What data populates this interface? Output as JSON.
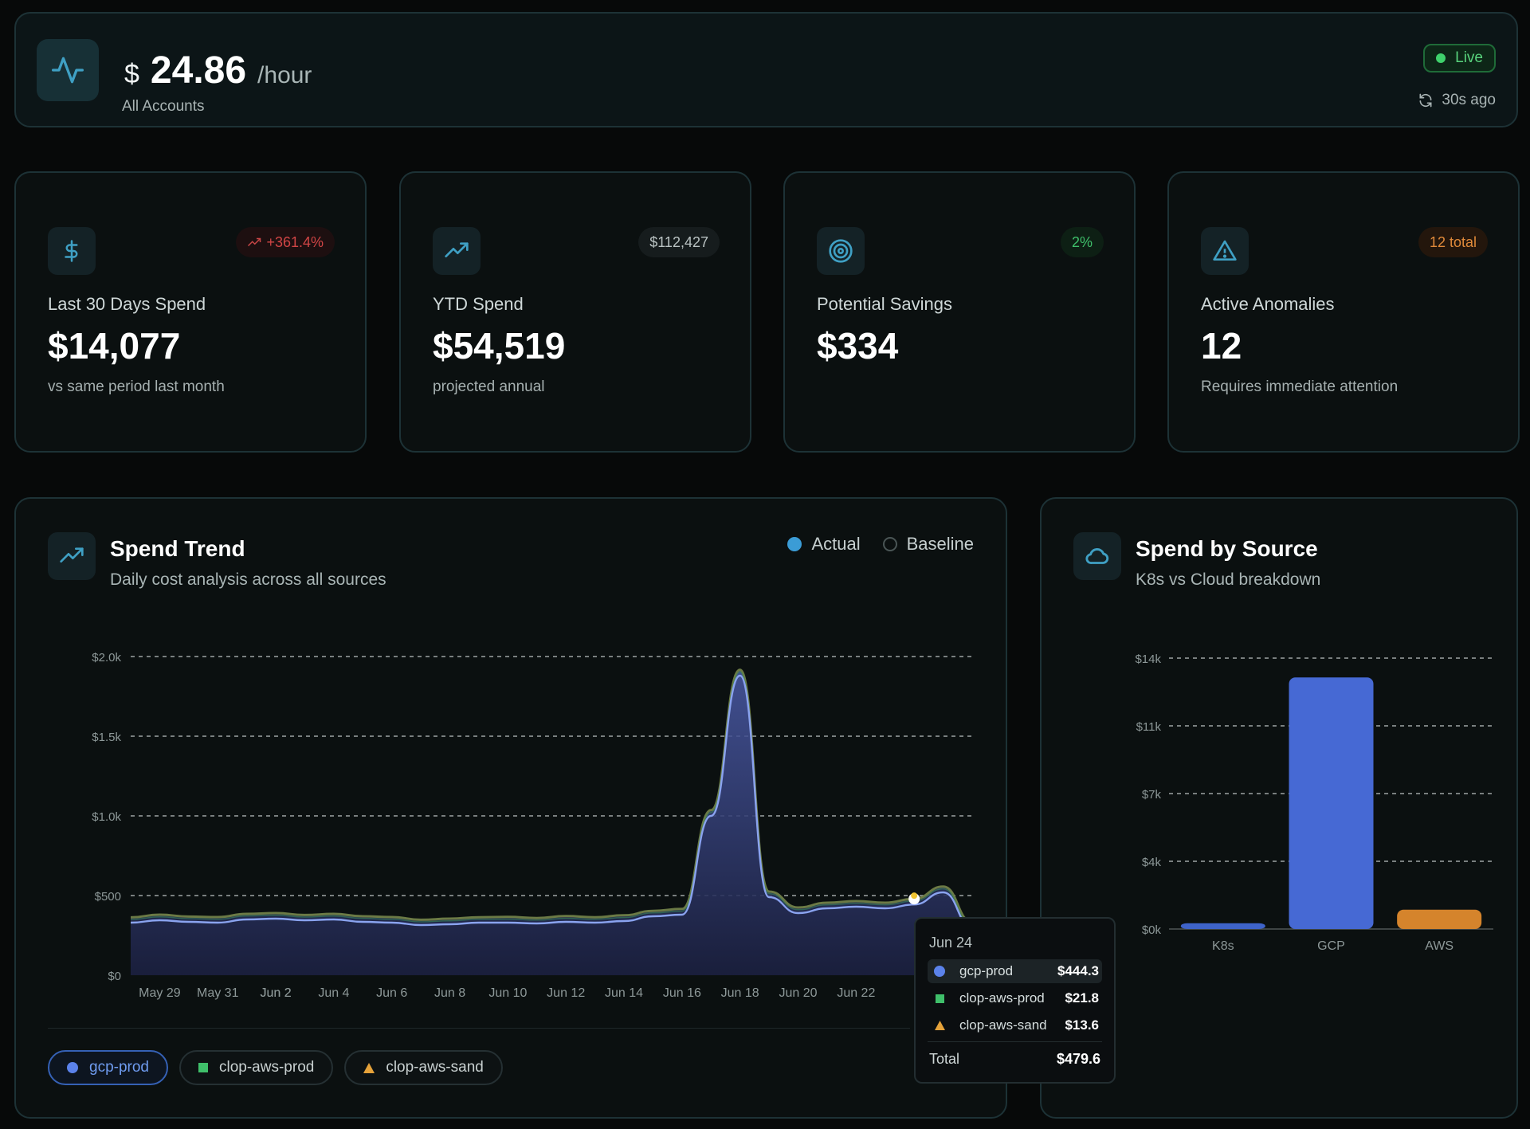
{
  "header": {
    "currency": "$",
    "rate": "24.86",
    "unit": "/hour",
    "account": "All Accounts",
    "status": "Live",
    "updated": "30s ago"
  },
  "stats": [
    {
      "label": "Last 30 Days Spend",
      "value": "$14,077",
      "sub": "vs same period last month",
      "badge": "+361.4%",
      "icon": "dollar-icon",
      "badge_color": "#d04545"
    },
    {
      "label": "YTD Spend",
      "value": "$54,519",
      "sub": "projected annual",
      "badge": "$112,427",
      "icon": "trending-up-icon",
      "badge_color": "#b9c2c2"
    },
    {
      "label": "Potential Savings",
      "value": "$334",
      "sub": "",
      "badge": "2%",
      "icon": "target-icon",
      "badge_color": "#3fbf6a"
    },
    {
      "label": "Active Anomalies",
      "value": "12",
      "sub": "Requires immediate attention",
      "badge": "12 total",
      "icon": "warning-icon",
      "badge_color": "#e08a3a"
    }
  ],
  "trend": {
    "title": "Spend Trend",
    "subtitle": "Daily cost analysis across all sources",
    "legend": {
      "actual": "Actual",
      "baseline": "Baseline"
    },
    "chips": [
      "gcp-prod",
      "clop-aws-prod",
      "clop-aws-sand"
    ],
    "tooltip": {
      "date": "Jun 24",
      "rows": [
        {
          "name": "gcp-prod",
          "value": "$444.3"
        },
        {
          "name": "clop-aws-prod",
          "value": "$21.8"
        },
        {
          "name": "clop-aws-sand",
          "value": "$13.6"
        }
      ],
      "total_label": "Total",
      "total_value": "$479.6"
    }
  },
  "source": {
    "title": "Spend by Source",
    "subtitle": "K8s vs Cloud breakdown"
  },
  "chart_data": [
    {
      "type": "area",
      "title": "Spend Trend",
      "x": [
        "May 28",
        "May 29",
        "May 30",
        "May 31",
        "Jun 1",
        "Jun 2",
        "Jun 3",
        "Jun 4",
        "Jun 5",
        "Jun 6",
        "Jun 7",
        "Jun 8",
        "Jun 9",
        "Jun 10",
        "Jun 11",
        "Jun 12",
        "Jun 13",
        "Jun 14",
        "Jun 15",
        "Jun 16",
        "Jun 17",
        "Jun 18",
        "Jun 19",
        "Jun 20",
        "Jun 21",
        "Jun 22",
        "Jun 23",
        "Jun 24",
        "Jun 25",
        "Jun 26"
      ],
      "xticks": [
        "May 29",
        "May 31",
        "Jun 2",
        "Jun 4",
        "Jun 6",
        "Jun 8",
        "Jun 10",
        "Jun 12",
        "Jun 14",
        "Jun 16",
        "Jun 18",
        "Jun 20",
        "Jun 22",
        "Jun 2"
      ],
      "yticks": [
        "$0",
        "$500",
        "$1.0k",
        "$1.5k",
        "$2.0k"
      ],
      "ylim": [
        0,
        2000
      ],
      "series": [
        {
          "name": "gcp-prod",
          "values": [
            330,
            345,
            335,
            330,
            350,
            355,
            345,
            350,
            335,
            330,
            315,
            320,
            330,
            330,
            325,
            335,
            330,
            340,
            370,
            380,
            1000,
            1880,
            490,
            390,
            420,
            430,
            420,
            444,
            520,
            300
          ]
        },
        {
          "name": "clop-aws-prod",
          "values": [
            20,
            21,
            20,
            21,
            22,
            21,
            20,
            21,
            22,
            21,
            20,
            21,
            21,
            22,
            21,
            22,
            21,
            22,
            21,
            22,
            22,
            23,
            22,
            21,
            22,
            21,
            22,
            21.8,
            22,
            20
          ]
        },
        {
          "name": "clop-aws-sand",
          "values": [
            13,
            14,
            13,
            14,
            13,
            14,
            13,
            14,
            13,
            14,
            13,
            14,
            13,
            14,
            13,
            14,
            13,
            14,
            13,
            14,
            14,
            14,
            13,
            14,
            13,
            14,
            13,
            13.6,
            14,
            13
          ]
        }
      ]
    },
    {
      "type": "bar",
      "title": "Spend by Source",
      "categories": [
        "K8s",
        "GCP",
        "AWS"
      ],
      "values": [
        300,
        13000,
        1000
      ],
      "yticks": [
        "$0k",
        "$4k",
        "$7k",
        "$11k",
        "$14k"
      ],
      "ylim": [
        0,
        14000
      ],
      "colors": [
        "#3e63c9",
        "#4669d4",
        "#d5842c"
      ]
    }
  ],
  "colors": {
    "accent": "#3b9cd6",
    "gcp": "#5b82ea",
    "aws_prod": "#3fbf6a",
    "aws_sand": "#e5a23a"
  }
}
